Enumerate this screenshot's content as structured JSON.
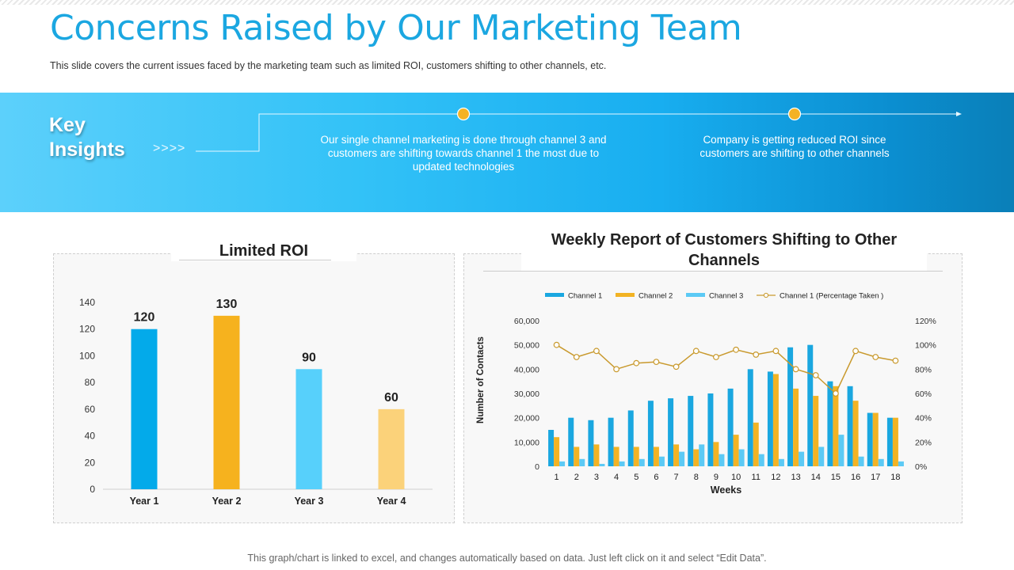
{
  "slide": {
    "title": "Concerns Raised by Our Marketing Team",
    "subtitle": "This slide covers the current issues faced by the marketing team such as limited ROI, customers shifting to other channels, etc.",
    "footer": "This graph/chart is linked to excel, and changes automatically based on data. Just left click on it and select “Edit Data”."
  },
  "insights": {
    "heading": "Key\nInsights",
    "chevrons": ">>>>",
    "items": [
      "Our single channel marketing is done through channel 3 and customers are shifting towards channel 1 the most due to updated technologies",
      "Company is getting reduced ROI since customers are shifting to other channels"
    ]
  },
  "colors": {
    "accent": "#1ba7e1",
    "gold": "#f4b223",
    "channel1": "#1aa7e0",
    "channel2": "#f2b324",
    "channel3": "#5ccaf5",
    "line": "#c99a2e"
  },
  "chart_data": [
    {
      "type": "bar",
      "title": "Limited ROI",
      "categories": [
        "Year 1",
        "Year 2",
        "Year 3",
        "Year 4"
      ],
      "values": [
        120,
        130,
        90,
        60
      ],
      "bar_colors": [
        "#03aaea",
        "#f6b21e",
        "#57d0fb",
        "#fbd27a"
      ],
      "ylim": [
        0,
        140
      ],
      "yticks": [
        0,
        20,
        40,
        60,
        80,
        100,
        120,
        140
      ],
      "xlabel": "",
      "ylabel": ""
    },
    {
      "type": "bar+line",
      "title": "Weekly Report of Customers Shifting to Other Channels",
      "xlabel": "Weeks",
      "ylabel": "Number of Contacts",
      "categories": [
        "1",
        "2",
        "3",
        "4",
        "5",
        "6",
        "7",
        "8",
        "9",
        "10",
        "11",
        "12",
        "13",
        "14",
        "15",
        "16",
        "17",
        "18"
      ],
      "ylim": [
        0,
        60000
      ],
      "yticks": [
        "0",
        "10,000",
        "20,000",
        "30,000",
        "40,000",
        "50,000",
        "60,000"
      ],
      "y2lim": [
        0,
        120
      ],
      "y2ticks": [
        "0%",
        "20%",
        "40%",
        "60%",
        "80%",
        "100%",
        "120%"
      ],
      "legend_position": "top",
      "series": [
        {
          "name": "Channel 1",
          "kind": "bar",
          "values": [
            15000,
            20000,
            19000,
            20000,
            23000,
            27000,
            28000,
            29000,
            30000,
            32000,
            40000,
            39000,
            49000,
            50000,
            35000,
            33000,
            22000,
            20000
          ]
        },
        {
          "name": "Channel 2",
          "kind": "bar",
          "values": [
            12000,
            8000,
            9000,
            8000,
            8000,
            8000,
            9000,
            7000,
            10000,
            13000,
            18000,
            38000,
            32000,
            29000,
            33000,
            27000,
            22000,
            20000
          ]
        },
        {
          "name": "Channel 3",
          "kind": "bar",
          "values": [
            2000,
            3000,
            1000,
            2000,
            3000,
            4000,
            6000,
            9000,
            5000,
            7000,
            5000,
            3000,
            6000,
            8000,
            13000,
            4000,
            3000,
            2000
          ]
        },
        {
          "name": "Channel 1 (Percentage Taken )",
          "kind": "line",
          "axis": "right",
          "values": [
            100,
            90,
            95,
            80,
            85,
            86,
            82,
            95,
            90,
            96,
            92,
            95,
            80,
            75,
            60,
            95,
            90,
            87
          ]
        }
      ]
    }
  ]
}
